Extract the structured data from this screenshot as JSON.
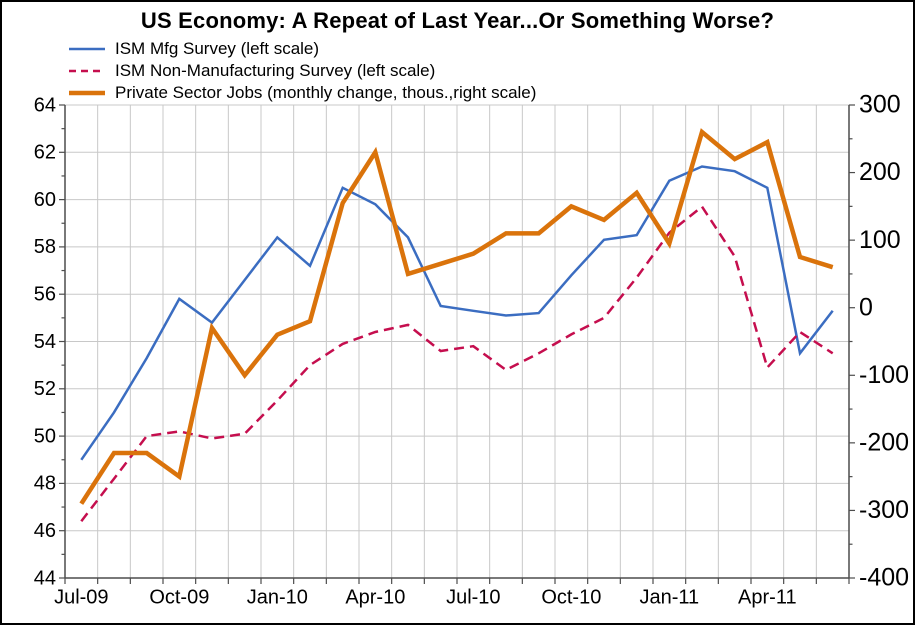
{
  "title": "US Economy: A Repeat of Last Year...Or Something Worse?",
  "legend": [
    {
      "label": "ISM Mfg Survey (left scale)",
      "series": "ism_mfg"
    },
    {
      "label": "ISM Non-Manufacturing Survey (left scale)",
      "series": "ism_nonmfg"
    },
    {
      "label": "Private Sector Jobs (monthly change, thous.,right scale)",
      "series": "private_jobs"
    }
  ],
  "colors": {
    "ism_mfg": "#3B6DC1",
    "ism_nonmfg": "#C50E4E",
    "private_jobs": "#DA730B",
    "gridline": "#C8C8C8",
    "axis": "#4D4D4D",
    "tick": "#4D4D4D",
    "label_text": "#000000",
    "background": "#FFFFFF"
  },
  "chart_data": {
    "type": "line",
    "title": "US Economy: A Repeat of Last Year...Or Something Worse?",
    "x": [
      "Jul-09",
      "Aug-09",
      "Sep-09",
      "Oct-09",
      "Nov-09",
      "Dec-09",
      "Jan-10",
      "Feb-10",
      "Mar-10",
      "Apr-10",
      "May-10",
      "Jun-10",
      "Jul-10",
      "Aug-10",
      "Sep-10",
      "Oct-10",
      "Nov-10",
      "Dec-10",
      "Jan-11",
      "Feb-11",
      "Mar-11",
      "Apr-11",
      "May-11",
      "Jun-11"
    ],
    "x_tick_labels": [
      "Jul-09",
      "Oct-09",
      "Jan-10",
      "Apr-10",
      "Jul-10",
      "Oct-10",
      "Jan-11",
      "Apr-11"
    ],
    "x_tick_label_every": 3,
    "series": [
      {
        "name": "ISM Mfg Survey",
        "axis": "left",
        "style": "solid",
        "width": 2.5,
        "color_key": "ism_mfg",
        "values": [
          49.0,
          51.0,
          53.3,
          55.8,
          54.8,
          56.6,
          58.4,
          57.2,
          60.5,
          59.8,
          58.4,
          55.5,
          55.3,
          55.1,
          55.2,
          56.8,
          58.3,
          58.5,
          60.8,
          61.4,
          61.2,
          60.5,
          53.5,
          55.3
        ]
      },
      {
        "name": "ISM Non-Manufacturing Survey",
        "axis": "left",
        "style": "dashed",
        "width": 2.5,
        "color_key": "ism_nonmfg",
        "values": [
          46.4,
          48.2,
          50.0,
          50.2,
          49.9,
          50.1,
          51.5,
          53.0,
          53.9,
          54.4,
          54.7,
          53.6,
          53.8,
          52.8,
          53.5,
          54.3,
          55.0,
          56.7,
          58.6,
          59.7,
          57.6,
          52.9,
          54.4,
          53.5
        ]
      },
      {
        "name": "Private Sector Jobs (monthly change, thous.)",
        "axis": "right",
        "style": "solid",
        "width": 4.5,
        "color_key": "private_jobs",
        "values": [
          -290,
          -215,
          -215,
          -250,
          -30,
          -100,
          -40,
          -20,
          155,
          230,
          50,
          65,
          80,
          110,
          110,
          150,
          130,
          170,
          95,
          260,
          220,
          245,
          75,
          60
        ]
      }
    ],
    "left_axis": {
      "min": 44,
      "max": 64,
      "major": 2,
      "minor": 1,
      "tick_labels": [
        "64",
        "62",
        "60",
        "58",
        "56",
        "54",
        "52",
        "50",
        "48",
        "46",
        "44"
      ]
    },
    "right_axis": {
      "min": -400,
      "max": 300,
      "major": 100,
      "minor": 50,
      "tick_labels": [
        "300",
        "200",
        "100",
        "0",
        "-100",
        "-200",
        "-300",
        "-400"
      ]
    },
    "grid": true,
    "legend_position": "top-left"
  }
}
